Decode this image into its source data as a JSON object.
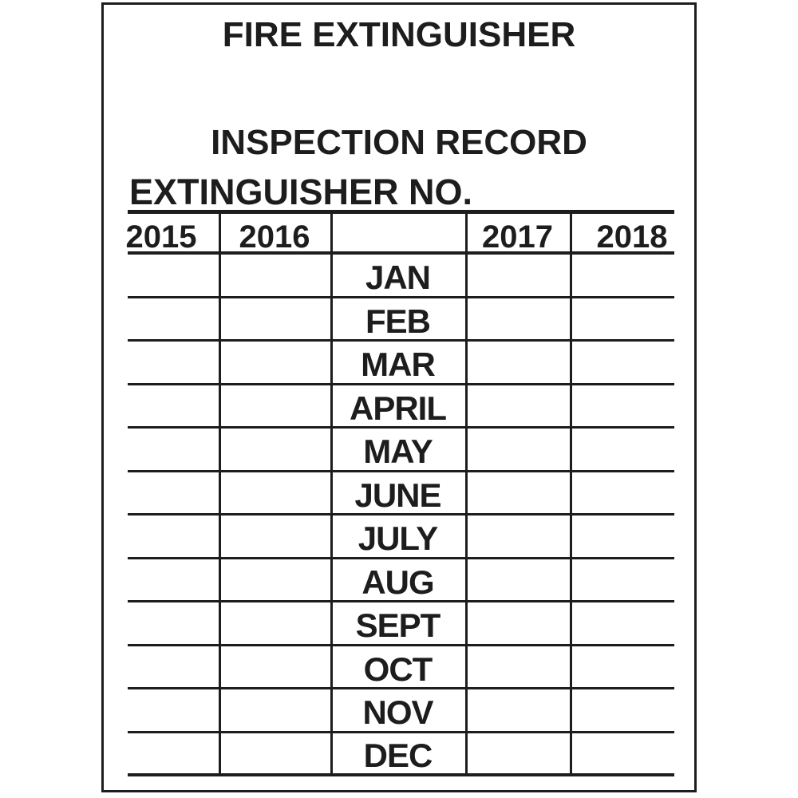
{
  "tag": {
    "title": "FIRE EXTINGUISHER",
    "subtitle": "INSPECTION RECORD",
    "extinguisher_no_label": "EXTINGUISHER NO.",
    "colors": {
      "ink": "#1d1d1d",
      "background": "#ffffff"
    },
    "table": {
      "year_columns": [
        "2015",
        "2016",
        "2017",
        "2018"
      ],
      "months": [
        "JAN",
        "FEB",
        "MAR",
        "APRIL",
        "MAY",
        "JUNE",
        "JULY",
        "AUG",
        "SEPT",
        "OCT",
        "NOV",
        "DEC"
      ]
    }
  }
}
